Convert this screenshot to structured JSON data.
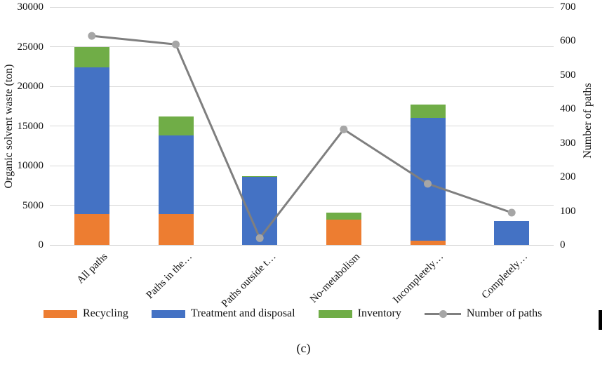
{
  "figure": {
    "caption": "(c)"
  },
  "chart_data": {
    "type": "bar",
    "subtype": "stacked-column-with-line",
    "categories": [
      "All paths",
      "Paths in the…",
      "Paths outside t…",
      "No-metabolism",
      "Incompletely…",
      "Completely…"
    ],
    "series": [
      {
        "name": "Recycling",
        "type": "bar",
        "color": "#ED7D31",
        "values": [
          3900,
          3900,
          0,
          3200,
          500,
          0
        ]
      },
      {
        "name": "Treatment and disposal",
        "type": "bar",
        "color": "#4472C4",
        "values": [
          18500,
          9900,
          8600,
          0,
          15500,
          3000
        ]
      },
      {
        "name": "Inventory",
        "type": "bar",
        "color": "#70AD47",
        "values": [
          2600,
          2400,
          100,
          900,
          1700,
          0
        ]
      },
      {
        "name": "Number of paths",
        "type": "line",
        "axis": "right",
        "color": "#7F7F7F",
        "marker_color": "#A6A6A6",
        "values": [
          615,
          590,
          20,
          340,
          180,
          95
        ]
      }
    ],
    "left_axis": {
      "label": "Organic solvent waste (ton)",
      "min": 0,
      "max": 30000,
      "step": 5000
    },
    "right_axis": {
      "label": "Number of paths",
      "min": 0,
      "max": 700,
      "step": 100
    },
    "legend": [
      "Recycling",
      "Treatment and disposal",
      "Inventory",
      "Number of paths"
    ],
    "legend_position": "bottom",
    "grid": true,
    "grid_color": "#D9D9D9"
  }
}
